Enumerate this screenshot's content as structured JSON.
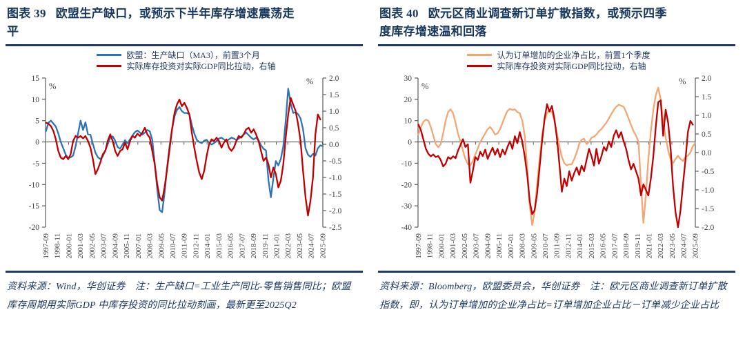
{
  "colors": {
    "navy": "#17375E",
    "rule": "#1F3864",
    "blue_line": "#2E74B5",
    "red_line": "#C00000",
    "orange_line": "#F3A672",
    "tick_text": "#404040",
    "zero_line": "#595959"
  },
  "figures": [
    {
      "label": "图表 39",
      "title": "欧盟生产缺口，或预示下半年库存增速震荡走平",
      "source_note": "资料来源：Wind，华创证券　注：生产缺口=工业生产同比-零售销售同比；欧盟库存周期用实际GDP 中库存投资的同比拉动刻画，最新更至2025Q2"
    },
    {
      "label": "图表 40",
      "title": "欧元区商业调查新订单扩散指数，或预示四季度库存增速温和回落",
      "source_note": "资料来源：Bloomberg，欧盟委员会，华创证券　注：欧元区商业调查新订单扩散指数，即，认为订单增加的企业净占比=订单增加企业占比－订单减少企业占比"
    }
  ],
  "chart_data": [
    {
      "type": "line",
      "title": "图表 39 欧盟生产缺口，或预示下半年库存增速震荡走平",
      "grid": false,
      "legend_position": "top",
      "x_start": 1997.75,
      "x_step": 0.25,
      "x_tick_start": 1997.708,
      "x_tick_step": 1.1667,
      "x_tick_labels": [
        "1997-09",
        "1998-11",
        "2000-01",
        "2001-03",
        "2002-05",
        "2003-07",
        "2004-09",
        "2005-11",
        "2007-01",
        "2008-03",
        "2009-05",
        "2010-07",
        "2011-09",
        "2012-11",
        "2014-01",
        "2015-03",
        "2016-05",
        "2017-07",
        "2018-09",
        "2019-11",
        "2021-01",
        "2022-03",
        "2023-05",
        "2024-07",
        "2025-09"
      ],
      "left_axis": {
        "label": "%",
        "min": -20,
        "max": 15,
        "ticks": [
          15,
          10,
          5,
          0,
          -5,
          -10,
          -15,
          -20
        ],
        "decimals": 0
      },
      "right_axis": {
        "label": "%",
        "min": -2.5,
        "max": 2.0,
        "ticks": [
          2.0,
          1.5,
          1.0,
          0.5,
          0.0,
          -0.5,
          -1.0,
          -1.5,
          -2.0,
          -2.5
        ],
        "decimals": 1
      },
      "series": [
        {
          "name": "欧盟：生产缺口（MA3），前置3个月",
          "axis": "left",
          "color": "#2E74B5",
          "values": [
            2.5,
            4.5,
            5,
            4.3,
            3.6,
            2,
            0,
            -1.5,
            -3,
            -3.8,
            -3.6,
            -3.2,
            -1,
            2,
            5,
            2.8,
            4.6,
            1.8,
            1.7,
            -0.5,
            -2.5,
            -3.6,
            -4,
            -3.4,
            -2,
            -0.5,
            1,
            1.3,
            0.3,
            -1.2,
            -1.6,
            -0.6,
            0.4,
            -0.3,
            0.6,
            1.5,
            2.3,
            2.7,
            2.2,
            1.7,
            2.2,
            2.8,
            2.5,
            0.5,
            -5,
            -11,
            -16,
            -16.5,
            -12,
            -6,
            -1,
            3,
            6,
            7.5,
            8.2,
            7.2,
            6.8,
            6.8,
            6.5,
            4,
            2,
            0.5,
            0,
            -0.3,
            0.3,
            0.5,
            -0.2,
            -0.6,
            -0.3,
            0.2,
            0.8,
            1,
            0.6,
            0.2,
            0.6,
            1,
            0.8,
            0.4,
            0.8,
            1.2,
            1.8,
            2.2,
            1.6,
            1,
            0.6,
            1,
            0.4,
            -0.8,
            -1.6,
            -2,
            -9,
            -13,
            -8.5,
            -4.5,
            -5.5,
            -4,
            -1,
            5,
            12.5,
            9,
            6.8,
            7,
            6.5,
            5.5,
            3,
            -1.5,
            -3,
            -3.5,
            -2.8,
            -3.2,
            -1.5,
            -0.8,
            -1
          ]
        },
        {
          "name": "实际库存投资对实际GDP同比拉动，右轴",
          "axis": "right",
          "color": "#C00000",
          "values": [
            0.65,
            0.62,
            0.55,
            0.4,
            0.15,
            -0.2,
            -0.4,
            -0.45,
            -0.35,
            -0.45,
            -0.3,
            0.1,
            0.25,
            0.2,
            0.25,
            0.18,
            0.25,
            0.1,
            -0.1,
            -0.45,
            -0.9,
            -0.75,
            -0.55,
            -0.3,
            -0.2,
            0.1,
            0.3,
            0.1,
            -0.2,
            -0.35,
            -0.2,
            -0.15,
            0.05,
            -0.15,
            0.1,
            0.25,
            0.2,
            0.32,
            0.25,
            0.35,
            0.5,
            0.3,
            0.2,
            -0.2,
            -0.6,
            -1.2,
            -1.6,
            -1.7,
            -1.3,
            -0.75,
            -0.15,
            0.45,
            0.95,
            1.2,
            1.35,
            1.15,
            1.25,
            1.1,
            0.9,
            0.35,
            -0.1,
            -0.5,
            -0.85,
            -1.05,
            -0.8,
            -0.35,
            0,
            0.15,
            0.1,
            0.2,
            0.1,
            -0.1,
            0.05,
            0.15,
            -0.1,
            -0.2,
            -0.1,
            0.1,
            0.25,
            0.2,
            0.3,
            0.45,
            0.5,
            0.35,
            0.45,
            0.3,
            0.1,
            -0.2,
            -0.5,
            -0.4,
            -0.6,
            -1,
            -0.7,
            -0.9,
            -1.3,
            -1.1,
            -0.6,
            0.2,
            0.9,
            1.4,
            1.2,
            1,
            0.6,
            0.1,
            -0.8,
            -1.6,
            -2.15,
            -1.7,
            -1,
            0.3,
            0.9,
            0.75
          ]
        }
      ]
    },
    {
      "type": "line",
      "title": "图表 40 欧元区商业调查新订单扩散指数，或预示四季度库存增速温和回落",
      "grid": false,
      "legend_position": "top",
      "x_start": 1997.75,
      "x_step": 0.25,
      "x_tick_start": 1997.708,
      "x_tick_step": 1.1667,
      "x_tick_labels": [
        "1997-09",
        "1998-11",
        "2000-01",
        "2001-03",
        "2002-05",
        "2003-07",
        "2004-09",
        "2005-11",
        "2007-01",
        "2008-03",
        "2009-05",
        "2010-07",
        "2011-09",
        "2012-11",
        "2014-01",
        "2015-03",
        "2016-05",
        "2017-07",
        "2018-09",
        "2019-11",
        "2021-01",
        "2022-03",
        "2023-05",
        "2024-07",
        "2025-09"
      ],
      "left_axis": {
        "label": "%",
        "min": -40,
        "max": 30,
        "ticks": [
          30,
          20,
          10,
          0,
          -10,
          -20,
          -30,
          -40
        ],
        "decimals": 0
      },
      "right_axis": {
        "label": "%",
        "min": -2.0,
        "max": 2.0,
        "ticks": [
          2.0,
          1.5,
          1.0,
          0.5,
          0.0,
          -0.5,
          -1.0,
          -1.5,
          -2.0
        ],
        "decimals": 1
      },
      "series": [
        {
          "name": "认为订单增加的企业净占比，前置1个季度",
          "axis": "left",
          "color": "#F3A672",
          "values": [
            3.5,
            7,
            9.5,
            10.5,
            10,
            7,
            3,
            -1,
            -2.5,
            -1,
            4,
            10,
            14,
            15.3,
            13.5,
            9,
            4,
            0,
            -4,
            -8,
            -10.5,
            -11,
            -9,
            -6,
            -3,
            0,
            2,
            4,
            6,
            7,
            5.5,
            3.5,
            4,
            6,
            9,
            12,
            14.5,
            15.5,
            15,
            15.3,
            14,
            13.5,
            10,
            3,
            -12,
            -30,
            -39,
            -33,
            -20,
            -8,
            3,
            10,
            13.5,
            15,
            14,
            10,
            4,
            -2,
            -7,
            -10,
            -11,
            -10.5,
            -10.5,
            -8,
            -5,
            -1,
            1,
            1.5,
            -1,
            0,
            2,
            2.5,
            3.5,
            5,
            6,
            7.5,
            9,
            11,
            13,
            15,
            16.5,
            17.5,
            17,
            16.5,
            14,
            11,
            8,
            5,
            3,
            0,
            -20,
            -38,
            -25,
            -8,
            5,
            15,
            22,
            25.5,
            20,
            10,
            2,
            -4,
            -8,
            -10,
            -8,
            -6.5,
            -8,
            -9,
            -7,
            -6.5,
            -5,
            -2,
            -0.5
          ]
        },
        {
          "name": "实际库存投资对实际GDP同比拉动，右轴",
          "axis": "right",
          "color": "#C00000",
          "values": [
            0.75,
            0.6,
            0.35,
            0.1,
            -0.03,
            -0.1,
            -0.05,
            -0.12,
            -0.09,
            -0.2,
            -0.37,
            -0.3,
            -0.12,
            -0.17,
            -0.1,
            -0.15,
            0.05,
            0.2,
            0.36,
            0.15,
            0.22,
            -0.81,
            -0.5,
            -0.12,
            -0.2,
            0.02,
            -0.09,
            0.08,
            -0.17,
            -0.01,
            0.13,
            -0.06,
            0.1,
            -0.12,
            0.08,
            -0.05,
            0.15,
            0.3,
            0.1,
            0.44,
            0.25,
            0.55,
            0.3,
            -0.1,
            -0.6,
            -1.3,
            -1.65,
            -1.55,
            -1.1,
            -0.4,
            0.3,
            0.9,
            1.3,
            1.1,
            1.25,
            0.9,
            0.4,
            -0.3,
            -1.05,
            -0.7,
            -0.9,
            -0.5,
            -0.75,
            -0.55,
            -0.4,
            -0.6,
            -0.35,
            -0.5,
            -0.2,
            0.1,
            -0.1,
            -0.35,
            0.1,
            -0.3,
            -0.1,
            0.15,
            0.05,
            0.3,
            0.15,
            0.45,
            0.6,
            0.4,
            0.55,
            0.3,
            0.1,
            -0.2,
            -0.45,
            -0.3,
            -0.5,
            -0.7,
            -1.15,
            -0.85,
            -1,
            -1.15,
            -0.7,
            -0.1,
            0.7,
            1.35,
            1.4,
            0.45,
            1.15,
            0.8,
            0.1,
            -0.9,
            -1.6,
            -2,
            -1.55,
            -0.85,
            -0.2,
            0.55,
            0.85,
            0.75
          ]
        }
      ]
    }
  ]
}
